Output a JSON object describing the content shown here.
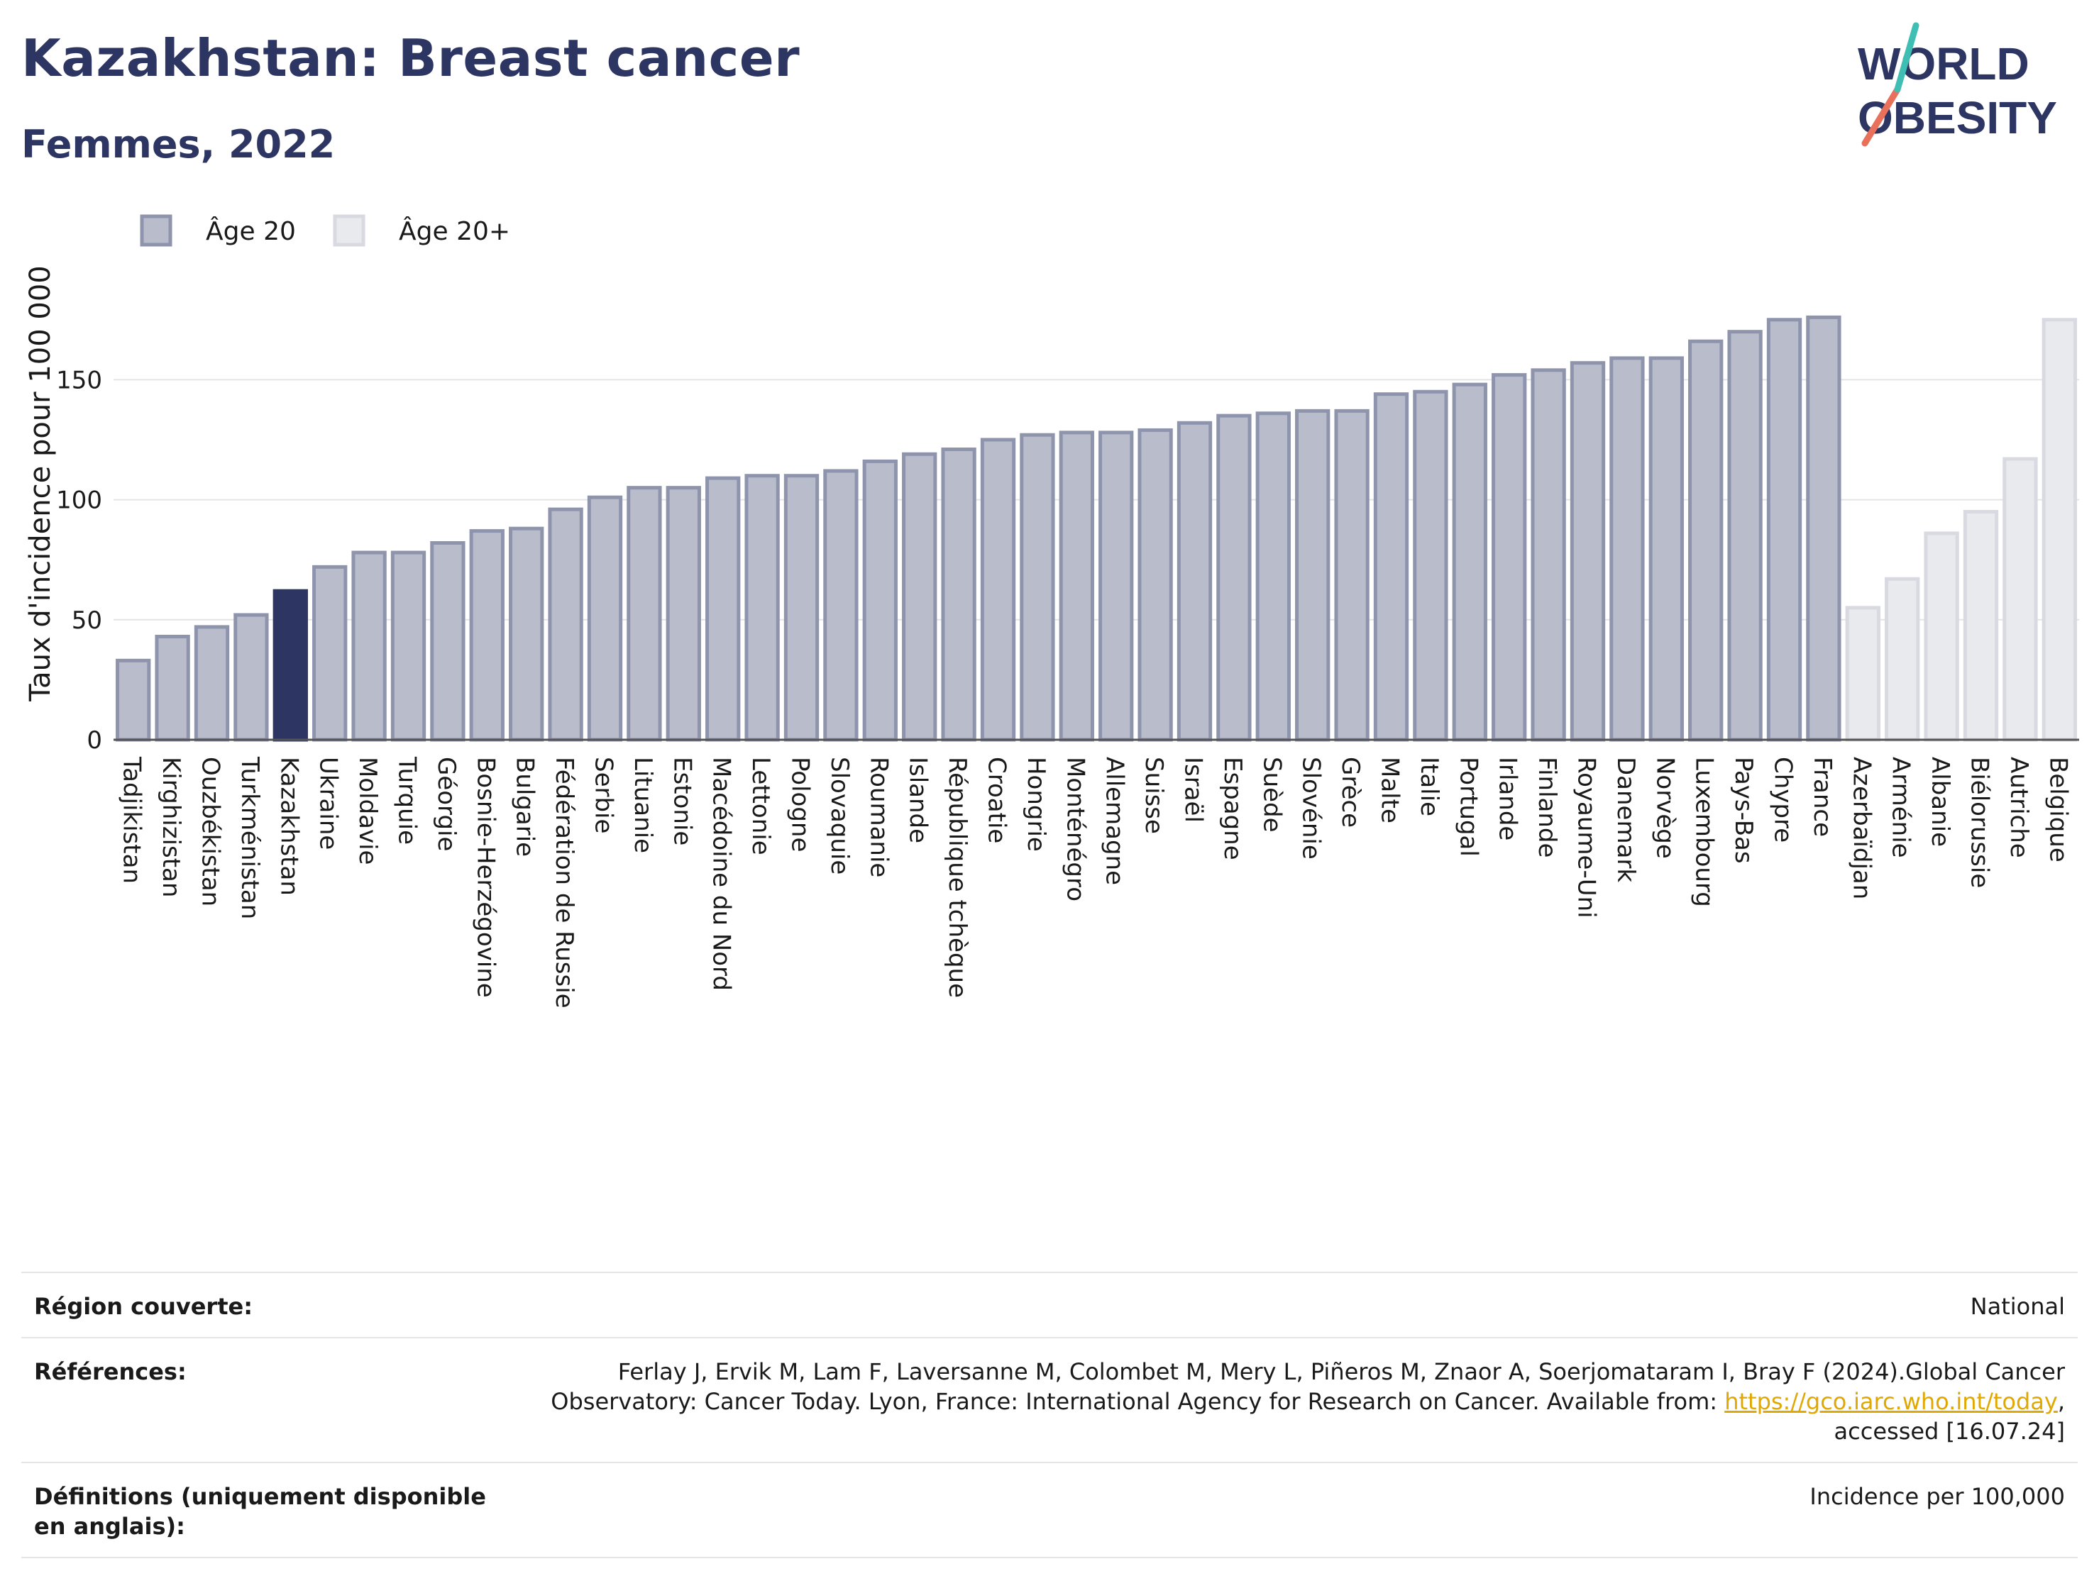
{
  "header": {
    "title": "Kazakhstan: Breast cancer",
    "subtitle": "Femmes, 2022"
  },
  "logo": {
    "line1": "WORLD",
    "line2": "OBESITY"
  },
  "chart_data": {
    "type": "bar",
    "title": "Kazakhstan: Breast cancer",
    "subtitle": "Femmes, 2022",
    "ylabel": "Taux d'incidence pour 100 000",
    "xlabel": "",
    "ylim": [
      0,
      190
    ],
    "yticks": [
      0,
      50,
      100,
      150
    ],
    "grid": true,
    "legend_position": "top-left",
    "highlight_category": "Kazakhstan",
    "colors": {
      "age20": "#b9bccb",
      "age20_edge": "#8f94ad",
      "age20plus": "#e9eaee",
      "age20plus_edge": "#d9dae1",
      "highlight": "#2d3562"
    },
    "series": [
      {
        "name": "Âge 20",
        "categories": [
          "Tadjikistan",
          "Kirghizistan",
          "Ouzbékistan",
          "Turkménistan",
          "Kazakhstan",
          "Ukraine",
          "Moldavie",
          "Turquie",
          "Géorgie",
          "Bosnie-Herzégovine",
          "Bulgarie",
          "Fédération de Russie",
          "Serbie",
          "Lituanie",
          "Estonie",
          "Macédoine du Nord",
          "Lettonie",
          "Pologne",
          "Slovaquie",
          "Roumanie",
          "Islande",
          "République tchèque",
          "Croatie",
          "Hongrie",
          "Monténégro",
          "Allemagne",
          "Suisse",
          "Israël",
          "Espagne",
          "Suède",
          "Slovénie",
          "Grèce",
          "Malte",
          "Italie",
          "Portugal",
          "Irlande",
          "Finlande",
          "Royaume-Uni",
          "Danemark",
          "Norvège",
          "Luxembourg",
          "Pays-Bas",
          "Chypre",
          "France"
        ],
        "values": [
          33,
          43,
          47,
          52,
          62,
          72,
          78,
          78,
          82,
          87,
          88,
          96,
          101,
          105,
          105,
          109,
          110,
          110,
          112,
          116,
          119,
          121,
          125,
          127,
          128,
          128,
          129,
          132,
          135,
          136,
          137,
          137,
          144,
          145,
          148,
          152,
          154,
          157,
          159,
          159,
          166,
          170,
          175,
          176
        ]
      },
      {
        "name": "Âge 20+",
        "categories": [
          "Azerbaïdjan",
          "Arménie",
          "Albanie",
          "Biélorussie",
          "Autriche",
          "Belgique"
        ],
        "values": [
          55,
          67,
          86,
          95,
          117,
          175
        ]
      }
    ]
  },
  "footer": {
    "region_label": "Région couverte:",
    "region_value": "National",
    "references_label": "Références:",
    "references_text1": "Ferlay J, Ervik M, Lam F, Laversanne M, Colombet M, Mery L, Piñeros M, Znaor A, Soerjomataram I, Bray F (2024).Global Cancer",
    "references_text2": "Observatory: Cancer Today. Lyon, France: International Agency for Research on Cancer. Available from: ",
    "references_link": "https://gco.iarc.who.int/today",
    "references_text3": ",",
    "references_text4": "accessed [16.07.24]",
    "definitions_label": "Définitions (uniquement disponible en anglais):",
    "definitions_value": "Incidence per 100,000"
  }
}
